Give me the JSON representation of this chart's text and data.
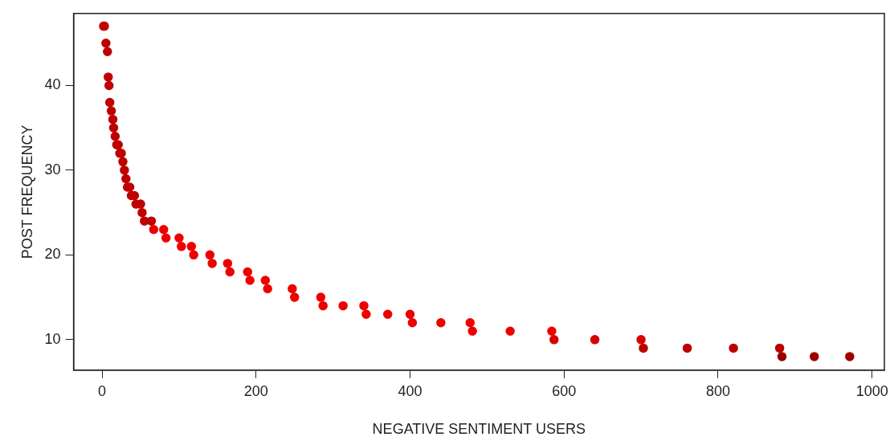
{
  "chart_data": {
    "type": "scatter",
    "xlabel": "NEGATIVE SENTIMENT USERS",
    "ylabel": "POST FREQUENCY",
    "xlim": [
      -37,
      1016
    ],
    "ylim": [
      6.4,
      48.5
    ],
    "xticks": [
      0,
      200,
      400,
      600,
      800,
      1000
    ],
    "yticks": [
      10,
      20,
      30,
      40
    ],
    "grid": false,
    "legend": false,
    "marker": "circle",
    "series": [
      {
        "x": [
          2,
          3,
          5,
          7,
          8,
          9,
          10,
          12,
          14,
          15,
          17,
          19,
          21,
          23,
          25,
          27,
          29,
          31,
          33,
          36,
          38,
          42,
          44,
          50,
          52,
          55,
          64,
          67,
          80,
          83,
          100,
          103,
          116,
          119,
          140,
          143,
          163,
          166,
          189,
          192,
          212,
          215,
          247,
          250,
          284,
          287,
          313,
          340,
          343,
          371,
          400,
          403,
          440,
          478,
          481,
          530,
          584,
          587,
          640,
          700,
          703,
          760,
          820,
          880,
          883,
          925,
          971
        ],
        "values": [
          47,
          47,
          45,
          44,
          41,
          40,
          38,
          37,
          36,
          35,
          34,
          33,
          33,
          32,
          32,
          31,
          30,
          29,
          28,
          28,
          27,
          27,
          26,
          26,
          25,
          24,
          24,
          23,
          23,
          22,
          22,
          21,
          21,
          20,
          20,
          19,
          19,
          18,
          18,
          17,
          17,
          16,
          16,
          15,
          15,
          14,
          14,
          14,
          13,
          13,
          13,
          12,
          12,
          12,
          11,
          11,
          11,
          10,
          10,
          10,
          9,
          9,
          9,
          9,
          8,
          8,
          8
        ],
        "colors": [
          "#c00000",
          "#c00000",
          "#c00000",
          "#c00000",
          "#c00000",
          "#c00000",
          "#c00000",
          "#c00000",
          "#c00000",
          "#c00000",
          "#c00000",
          "#c00000",
          "#c00000",
          "#c00000",
          "#c00000",
          "#c00000",
          "#c00000",
          "#c00000",
          "#c00000",
          "#c00000",
          "#c00000",
          "#c00000",
          "#c00000",
          "#c00000",
          "#c00000",
          "#c00000",
          "#c00000",
          "#ee0000",
          "#ee0000",
          "#ee0000",
          "#ee0000",
          "#ee0000",
          "#ee0000",
          "#ee0000",
          "#ee0000",
          "#ee0000",
          "#ee0000",
          "#ee0000",
          "#ee0000",
          "#ee0000",
          "#ee0000",
          "#ee0000",
          "#ee0000",
          "#ee0000",
          "#ee0000",
          "#ee0000",
          "#ee0000",
          "#ee0000",
          "#ee0000",
          "#ee0000",
          "#ee0000",
          "#ee0000",
          "#ee0000",
          "#ee0000",
          "#ee0000",
          "#ee0000",
          "#ee0000",
          "#d80000",
          "#d80000",
          "#d80000",
          "#bb0000",
          "#bb0000",
          "#bb0000",
          "#bb0000",
          "#9a0000",
          "#9a0000",
          "#9a0000"
        ]
      }
    ]
  }
}
